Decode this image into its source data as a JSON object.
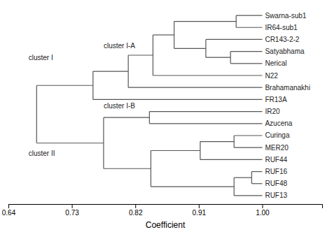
{
  "chart_data": {
    "type": "dendrogram",
    "xlabel": "Coefficient",
    "xlim": [
      0.64,
      1.085
    ],
    "xticks": [
      0.64,
      0.73,
      0.82,
      0.91,
      {
        "value": 1.0,
        "label": "1.00"
      }
    ],
    "ylim": [
      0.3,
      16.7
    ],
    "tick_labels": "x",
    "grid": false,
    "color": "#555555",
    "tree": {
      "height": 0.68,
      "children": [
        {
          "height": 0.76,
          "children": [
            {
              "height": 0.81,
              "children": [
                {
                  "height": 0.845,
                  "children": [
                    {
                      "height": 0.875,
                      "children": [
                        {
                          "height": 0.963,
                          "children": [
                            {
                              "name": "Swarna-sub1",
                              "height": 1.0
                            },
                            {
                              "name": "IR64-sub1",
                              "height": 1.0
                            }
                          ]
                        },
                        {
                          "height": 0.92,
                          "children": [
                            {
                              "name": "CR143-2-2",
                              "height": 1.0
                            },
                            {
                              "height": 0.955,
                              "children": [
                                {
                                  "name": "Satyabhama",
                                  "height": 1.0
                                },
                                {
                                  "name": "Nerical",
                                  "height": 1.0
                                }
                              ]
                            }
                          ]
                        }
                      ]
                    },
                    {
                      "name": "N22",
                      "height": 1.0
                    }
                  ]
                },
                {
                  "name": "Brahamanakhi",
                  "height": 1.0
                }
              ]
            },
            {
              "name": "FR13A",
              "height": 1.0
            }
          ]
        },
        {
          "height": 0.775,
          "children": [
            {
              "height": 0.84,
              "children": [
                {
                  "name": "IR20",
                  "height": 1.0
                },
                {
                  "name": "Azucena",
                  "height": 1.0
                }
              ]
            },
            {
              "height": 0.842,
              "children": [
                {
                  "height": 0.912,
                  "children": [
                    {
                      "height": 0.96,
                      "children": [
                        {
                          "name": "Curinga",
                          "height": 1.0
                        },
                        {
                          "name": "MER20",
                          "height": 1.0
                        }
                      ]
                    },
                    {
                      "name": "RUF44",
                      "height": 1.0
                    }
                  ]
                },
                {
                  "height": 0.96,
                  "children": [
                    {
                      "height": 0.985,
                      "children": [
                        {
                          "name": "RUF16",
                          "height": 1.0
                        },
                        {
                          "name": "RUF48",
                          "height": 1.0
                        }
                      ]
                    },
                    {
                      "name": "RUF13",
                      "height": 1.0
                    }
                  ]
                }
              ]
            }
          ]
        }
      ]
    },
    "annotations": [
      {
        "text": "cluster II",
        "x": 0.6685,
        "y": 4.5
      },
      {
        "text": "cluster I",
        "x": 0.6685,
        "y": 12.5
      },
      {
        "text": "cluster I-B",
        "x": 0.775,
        "y": 8.5
      },
      {
        "text": "cluster I-A",
        "x": 0.775,
        "y": 13.5
      }
    ]
  }
}
